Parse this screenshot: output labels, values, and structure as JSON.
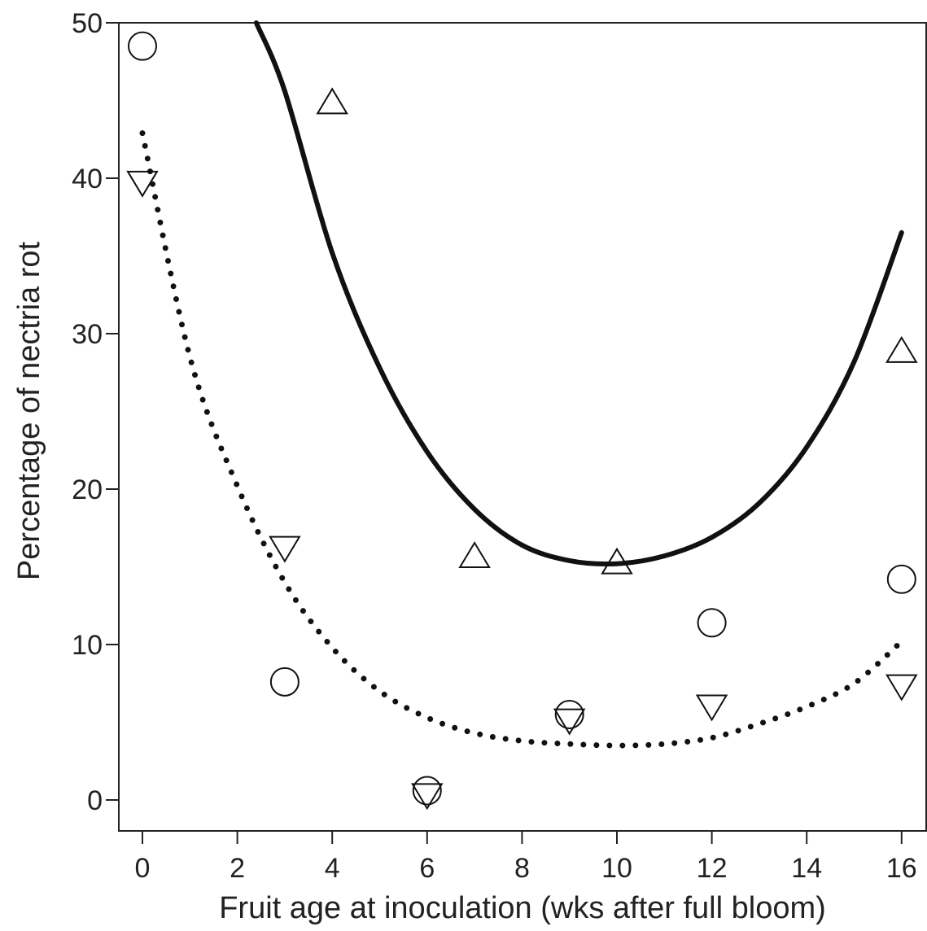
{
  "chart_data": {
    "type": "scatter",
    "title": "",
    "xlabel": "Fruit age at inoculation (wks after full bloom)",
    "ylabel": "Percentage of nectria rot",
    "xlim": [
      -0.5,
      16.5
    ],
    "ylim": [
      -2,
      50
    ],
    "x_ticks": [
      0,
      2,
      4,
      6,
      8,
      10,
      12,
      14,
      16
    ],
    "y_ticks": [
      0,
      10,
      20,
      30,
      40,
      50
    ],
    "grid": false,
    "legend": "none",
    "series": [
      {
        "marker": "circle",
        "x": [
          0,
          3,
          6,
          9,
          12,
          16
        ],
        "y": [
          48.5,
          7.6,
          0.6,
          5.5,
          11.4,
          14.2
        ]
      },
      {
        "marker": "triangle-up",
        "x": [
          4,
          7,
          10,
          16
        ],
        "y": [
          44.8,
          15.6,
          15.2,
          28.8
        ]
      },
      {
        "marker": "triangle-down",
        "x": [
          0,
          3,
          6,
          9,
          12,
          16
        ],
        "y": [
          39.8,
          16.3,
          0.4,
          5.2,
          6.1,
          7.4
        ]
      }
    ],
    "fits": [
      {
        "style": "solid",
        "x": [
          2.4,
          3,
          4,
          5,
          6,
          7,
          8,
          9,
          10,
          11,
          12,
          13,
          14,
          15,
          16
        ],
        "y": [
          50,
          45.6,
          35.2,
          27.8,
          22.4,
          18.7,
          16.4,
          15.4,
          15.2,
          15.7,
          16.9,
          19.1,
          22.7,
          28.2,
          36.5
        ]
      },
      {
        "style": "dotted",
        "x": [
          0,
          1,
          2,
          3,
          4,
          5,
          6,
          7,
          8,
          9,
          10,
          11,
          12,
          13,
          14,
          15,
          16
        ],
        "y": [
          42.9,
          28.5,
          20.2,
          14.0,
          9.8,
          7.0,
          5.3,
          4.3,
          3.8,
          3.6,
          3.5,
          3.6,
          4.0,
          4.9,
          6.0,
          7.5,
          10.2
        ]
      }
    ]
  }
}
